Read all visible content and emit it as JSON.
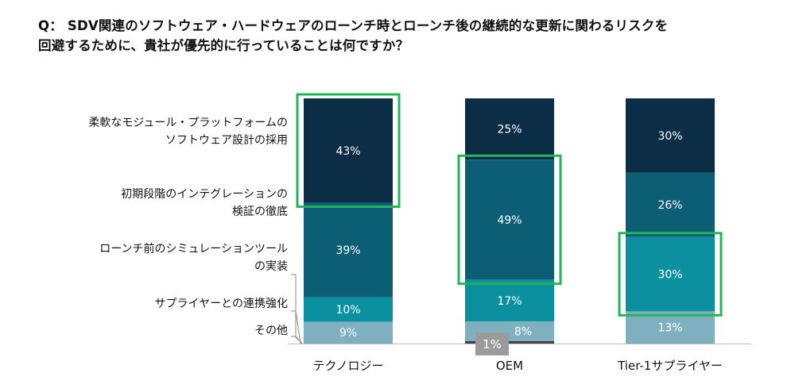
{
  "question": {
    "line1": "Q： SDV関連のソフトウェア・ハードウェアのローンチ時とローンチ後の継続的な更新に関わるリスクを",
    "line2": "回避するために、貴社が優先的に行っていることは何ですか？"
  },
  "colors": {
    "level1": "#0b2d45",
    "level2": "#0c5e74",
    "level3": "#0b90a0",
    "level4": "#7eb0bf",
    "level5": "#444444",
    "highlight": "#22b55a",
    "axis": "#bbbbbb",
    "leader": "#888888",
    "callout_bg": "#9b9b9b"
  },
  "chart_data": {
    "type": "bar",
    "stacked": true,
    "normalized_percent": true,
    "categories": [
      "テクノロジー",
      "OEM",
      "Tier-1サプライヤー"
    ],
    "series": [
      {
        "name_lines": [
          "柔軟なモジュール・プラットフォームの",
          "ソフトウェア設計の採用"
        ],
        "values": [
          43,
          25,
          30
        ],
        "labels": [
          "43%",
          "25%",
          "30%"
        ]
      },
      {
        "name_lines": [
          "初期段階のインテグレーションの",
          "検証の徹底"
        ],
        "values": [
          39,
          49,
          26
        ],
        "labels": [
          "39%",
          "49%",
          "26%"
        ]
      },
      {
        "name_lines": [
          "ローンチ前のシミュレーションツール",
          "の実装"
        ],
        "values": [
          10,
          17,
          30
        ],
        "labels": [
          "10%",
          "17%",
          "30%"
        ]
      },
      {
        "name_lines": [
          "サプライヤーとの連携強化"
        ],
        "values": [
          0,
          0,
          0
        ],
        "labels": [
          "",
          "",
          ""
        ]
      },
      {
        "name_lines": [
          "その他"
        ],
        "values": [
          9,
          8,
          13
        ],
        "labels": [
          "9%",
          "8%",
          "13%"
        ]
      },
      {
        "name_lines": [],
        "values": [
          0,
          1,
          0
        ],
        "labels": [
          "",
          "1%",
          ""
        ]
      }
    ],
    "highlighted": [
      {
        "category": "テクノロジー",
        "series": 0
      },
      {
        "category": "OEM",
        "series": 1
      },
      {
        "category": "Tier-1サプライヤー",
        "series": 2
      }
    ]
  }
}
